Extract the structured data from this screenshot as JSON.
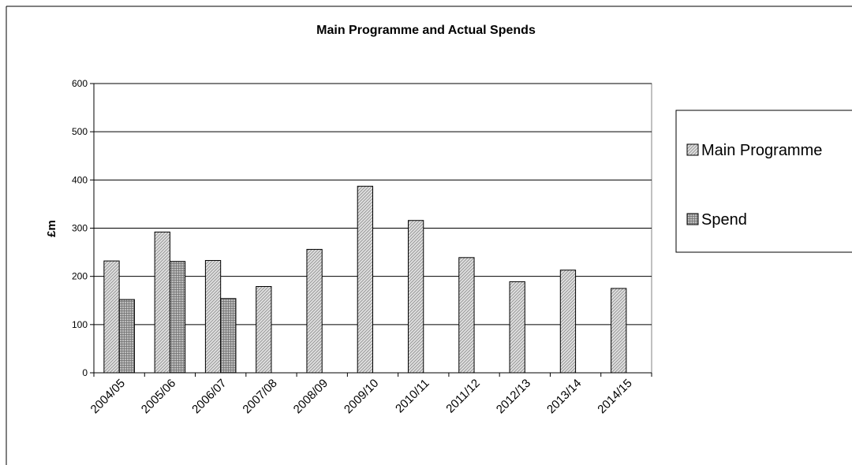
{
  "chart_data": {
    "type": "bar",
    "title": "Main Programme and Actual Spends",
    "xlabel": "",
    "ylabel": "£m",
    "ylim": [
      0,
      600
    ],
    "yticks": [
      0,
      100,
      200,
      300,
      400,
      500,
      600
    ],
    "grid": true,
    "legend_position": "right",
    "categories": [
      "2004/05",
      "2005/06",
      "2006/07",
      "2007/08",
      "2008/09",
      "2009/10",
      "2010/11",
      "2011/12",
      "2012/13",
      "2013/14",
      "2014/15"
    ],
    "series": [
      {
        "name": "Main Programme",
        "values": [
          232,
          292,
          233,
          179,
          256,
          387,
          316,
          239,
          189,
          213,
          175
        ],
        "pattern": "diagonal"
      },
      {
        "name": "Spend",
        "values": [
          152,
          231,
          154,
          null,
          null,
          null,
          null,
          null,
          null,
          null,
          null
        ],
        "pattern": "crosshatch"
      }
    ],
    "colors": {
      "bar_fill": "#d9d9d9",
      "stroke": "#000000",
      "grid": "#000000",
      "background": "#ffffff"
    }
  }
}
